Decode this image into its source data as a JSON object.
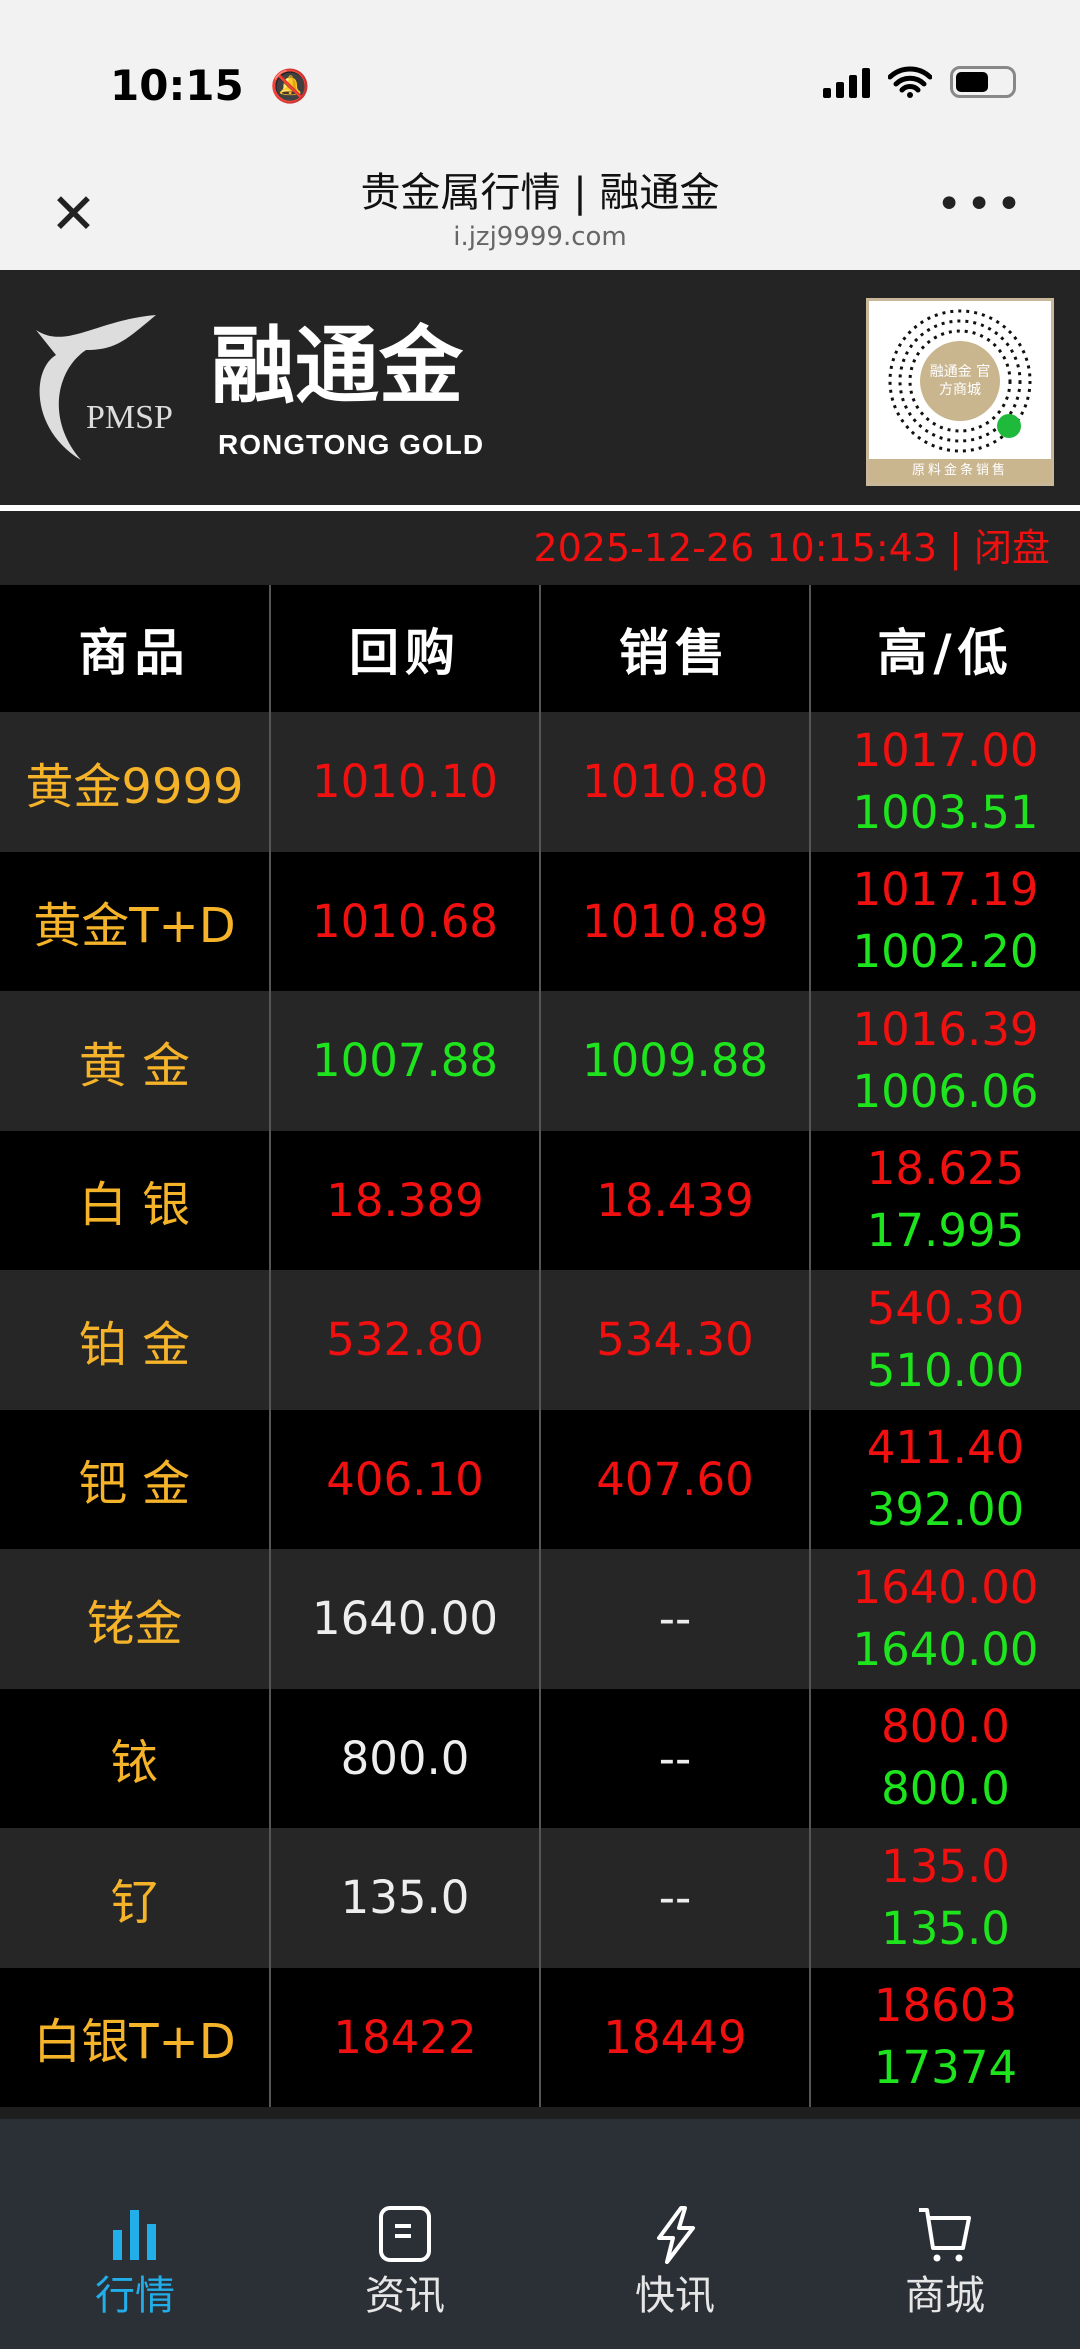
{
  "status_bar": {
    "time": "10:15"
  },
  "nav_bar": {
    "title": "贵金属行情 | 融通金",
    "url": "i.jzj9999.com"
  },
  "banner": {
    "logo_text": "融通金",
    "logo_sub": "RONGTONG GOLD",
    "logo_mark": "PMSP",
    "qr_caption": "原料金条销售",
    "qr_center": "融通金 官方商城"
  },
  "date_status": "2025-12-26 10:15:43 | 闭盘",
  "table": {
    "headers": [
      "商品",
      "回购",
      "销售",
      "高/低"
    ],
    "rows": [
      {
        "name": "黄金9999",
        "buy": "1010.10",
        "sell": "1010.80",
        "high": "1017.00",
        "low": "1003.51",
        "buy_color": "red",
        "sell_color": "red"
      },
      {
        "name": "黄金T+D",
        "buy": "1010.68",
        "sell": "1010.89",
        "high": "1017.19",
        "low": "1002.20",
        "buy_color": "red",
        "sell_color": "red"
      },
      {
        "name": "黄 金",
        "buy": "1007.88",
        "sell": "1009.88",
        "high": "1016.39",
        "low": "1006.06",
        "buy_color": "green",
        "sell_color": "green"
      },
      {
        "name": "白 银",
        "buy": "18.389",
        "sell": "18.439",
        "high": "18.625",
        "low": "17.995",
        "buy_color": "red",
        "sell_color": "red"
      },
      {
        "name": "铂 金",
        "buy": "532.80",
        "sell": "534.30",
        "high": "540.30",
        "low": "510.00",
        "buy_color": "red",
        "sell_color": "red"
      },
      {
        "name": "钯 金",
        "buy": "406.10",
        "sell": "407.60",
        "high": "411.40",
        "low": "392.00",
        "buy_color": "red",
        "sell_color": "red"
      },
      {
        "name": "铑金",
        "buy": "1640.00",
        "sell": "--",
        "high": "1640.00",
        "low": "1640.00",
        "buy_color": "white",
        "sell_color": "white"
      },
      {
        "name": "铱",
        "buy": "800.0",
        "sell": "--",
        "high": "800.0",
        "low": "800.0",
        "buy_color": "white",
        "sell_color": "white"
      },
      {
        "name": "钌",
        "buy": "135.0",
        "sell": "--",
        "high": "135.0",
        "low": "135.0",
        "buy_color": "white",
        "sell_color": "white"
      },
      {
        "name": "白银T+D",
        "buy": "18422",
        "sell": "18449",
        "high": "18603",
        "low": "17374",
        "buy_color": "red",
        "sell_color": "red"
      }
    ]
  },
  "bottom_nav": [
    {
      "label": "行情",
      "icon": "bar-chart-icon",
      "active": true
    },
    {
      "label": "资讯",
      "icon": "document-icon",
      "active": false
    },
    {
      "label": "快讯",
      "icon": "lightning-icon",
      "active": false
    },
    {
      "label": "商城",
      "icon": "cart-icon",
      "active": false
    }
  ],
  "colors": {
    "up": "#f01010",
    "down": "#1ee41e",
    "name": "#f5b32a",
    "accent": "#22aee8"
  }
}
